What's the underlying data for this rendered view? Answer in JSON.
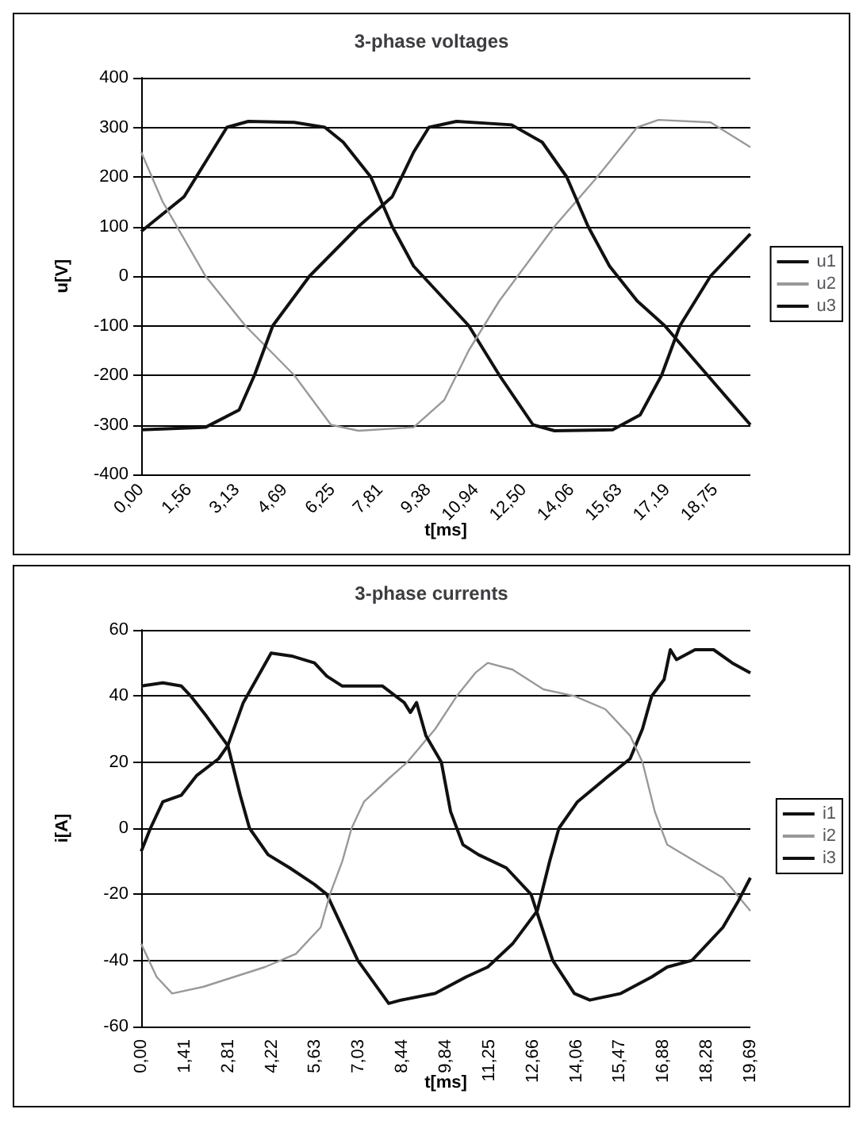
{
  "chart_data": [
    {
      "type": "line",
      "title": "3-phase voltages",
      "xlabel": "t[ms]",
      "ylabel": "u[V]",
      "xlim": [
        0,
        19.9
      ],
      "ylim": [
        -400,
        400
      ],
      "yticks": [
        -400,
        -300,
        -200,
        -100,
        0,
        100,
        200,
        300,
        400
      ],
      "xticks": [
        {
          "value": 0,
          "label": "0,00"
        },
        {
          "value": 1.5625,
          "label": "1,56"
        },
        {
          "value": 3.125,
          "label": "3,13"
        },
        {
          "value": 4.6875,
          "label": "4,69"
        },
        {
          "value": 6.25,
          "label": "6,25"
        },
        {
          "value": 7.8125,
          "label": "7,81"
        },
        {
          "value": 9.375,
          "label": "9,38"
        },
        {
          "value": 10.9375,
          "label": "10,94"
        },
        {
          "value": 12.5,
          "label": "12,50"
        },
        {
          "value": 14.0625,
          "label": "14,06"
        },
        {
          "value": 15.625,
          "label": "15,63"
        },
        {
          "value": 17.1875,
          "label": "17,19"
        },
        {
          "value": 18.75,
          "label": "18,75"
        }
      ],
      "grid": "y",
      "legend": "right",
      "marker": "none",
      "line_style": "solid",
      "series": [
        {
          "name": "u1",
          "color": "#111111",
          "x": [
            0,
            1.4,
            2.1,
            2.8,
            3.5,
            5,
            6,
            6.6,
            7.5,
            8.2,
            8.9,
            10.7,
            11.7,
            12.8,
            13.5,
            15.4,
            16.3,
            17,
            17.6,
            18.6,
            19.9
          ],
          "values": [
            90,
            160,
            230,
            300,
            312,
            310,
            300,
            270,
            200,
            100,
            20,
            -100,
            -200,
            -300,
            -312,
            -310,
            -280,
            -200,
            -100,
            0,
            85
          ]
        },
        {
          "name": "u2",
          "color": "#999999",
          "x": [
            0,
            0.7,
            2.1,
            3.4,
            5,
            6.2,
            7.1,
            8.9,
            9.9,
            10.7,
            11.7,
            12.3,
            13.5,
            14.9,
            16.2,
            16.9,
            18.6,
            19.9
          ],
          "values": [
            250,
            150,
            0,
            -100,
            -200,
            -300,
            -312,
            -305,
            -250,
            -150,
            -50,
            0,
            100,
            200,
            300,
            315,
            310,
            260
          ]
        },
        {
          "name": "u3",
          "color": "#111111",
          "x": [
            0,
            2.1,
            3.2,
            3.7,
            4.3,
            5.5,
            7.1,
            8.2,
            8.9,
            9.4,
            10.3,
            12.1,
            13.1,
            13.9,
            14.6,
            15.3,
            16.2,
            17.1,
            18.5,
            19.9
          ],
          "values": [
            -310,
            -305,
            -270,
            -200,
            -100,
            0,
            100,
            160,
            250,
            300,
            312,
            305,
            270,
            200,
            100,
            20,
            -50,
            -100,
            -200,
            -300
          ]
        }
      ]
    },
    {
      "type": "line",
      "title": "3-phase currents",
      "xlabel": "t[ms]",
      "ylabel": "i[A]",
      "xlim": [
        0,
        19.6875
      ],
      "ylim": [
        -60,
        60
      ],
      "yticks": [
        -60,
        -40,
        -20,
        0,
        20,
        40,
        60
      ],
      "xticks": [
        {
          "value": 0,
          "label": "0,00"
        },
        {
          "value": 1.40625,
          "label": "1,41"
        },
        {
          "value": 2.8125,
          "label": "2,81"
        },
        {
          "value": 4.21875,
          "label": "4,22"
        },
        {
          "value": 5.625,
          "label": "5,63"
        },
        {
          "value": 7.03125,
          "label": "7,03"
        },
        {
          "value": 8.4375,
          "label": "8,44"
        },
        {
          "value": 9.84375,
          "label": "9,84"
        },
        {
          "value": 11.25,
          "label": "11,25"
        },
        {
          "value": 12.65625,
          "label": "12,66"
        },
        {
          "value": 14.0625,
          "label": "14,06"
        },
        {
          "value": 15.46875,
          "label": "15,47"
        },
        {
          "value": 16.875,
          "label": "16,88"
        },
        {
          "value": 18.28125,
          "label": "18,28"
        },
        {
          "value": 19.6875,
          "label": "19,69"
        }
      ],
      "grid": "y",
      "legend": "right",
      "marker": "none",
      "line_style": "solid",
      "series": [
        {
          "name": "i1",
          "color": "#111111",
          "x": [
            0,
            0.7,
            1.3,
            1.6,
            2.1,
            2.8,
            3.2,
            3.5,
            4.1,
            4.8,
            5.6,
            6,
            7,
            8,
            8.4,
            9.5,
            10.5,
            11.2,
            12,
            12.8,
            13.2,
            13.5,
            14.1,
            15,
            15.8,
            16.2,
            16.5,
            16.9,
            17.1,
            17.3,
            17.9,
            18.5,
            19.1,
            19.6875
          ],
          "values": [
            43,
            44,
            43,
            40,
            34,
            25,
            10,
            0,
            -8,
            -12,
            -17,
            -20,
            -40,
            -53,
            -52,
            -50,
            -45,
            -42,
            -35,
            -25,
            -10,
            0,
            8,
            15,
            21,
            30,
            40,
            45,
            54,
            51,
            54,
            54,
            50,
            47
          ]
        },
        {
          "name": "i2",
          "color": "#999999",
          "x": [
            0,
            0.5,
            1,
            2,
            3,
            4,
            5,
            5.8,
            6.1,
            6.5,
            6.8,
            7.2,
            8,
            8.6,
            9.5,
            10.2,
            10.8,
            11.2,
            12,
            13,
            14,
            15,
            15.8,
            16.2,
            16.6,
            17,
            17.9,
            18.8,
            19.6875
          ],
          "values": [
            -35,
            -45,
            -50,
            -48,
            -45,
            -42,
            -38,
            -30,
            -20,
            -10,
            0,
            8,
            15,
            20,
            30,
            40,
            47,
            50,
            48,
            42,
            40,
            36,
            28,
            20,
            5,
            -5,
            -10,
            -15,
            -25
          ]
        },
        {
          "name": "i3",
          "color": "#111111",
          "x": [
            0,
            0.3,
            0.7,
            1.3,
            1.8,
            2.5,
            2.8,
            3.3,
            3.9,
            4.2,
            4.9,
            5.6,
            6,
            6.5,
            7.8,
            8.5,
            8.7,
            8.9,
            9.2,
            9.7,
            10,
            10.4,
            10.9,
            11.8,
            12.6,
            13.3,
            14,
            14.5,
            15.5,
            16.5,
            17,
            17.8,
            18.8,
            19.3,
            19.6875
          ],
          "values": [
            -7,
            0,
            8,
            10,
            16,
            21,
            25,
            38,
            48,
            53,
            52,
            50,
            46,
            43,
            43,
            38,
            35,
            38,
            28,
            20,
            5,
            -5,
            -8,
            -12,
            -20,
            -40,
            -50,
            -52,
            -50,
            -45,
            -42,
            -40,
            -30,
            -22,
            -15
          ]
        }
      ]
    }
  ]
}
